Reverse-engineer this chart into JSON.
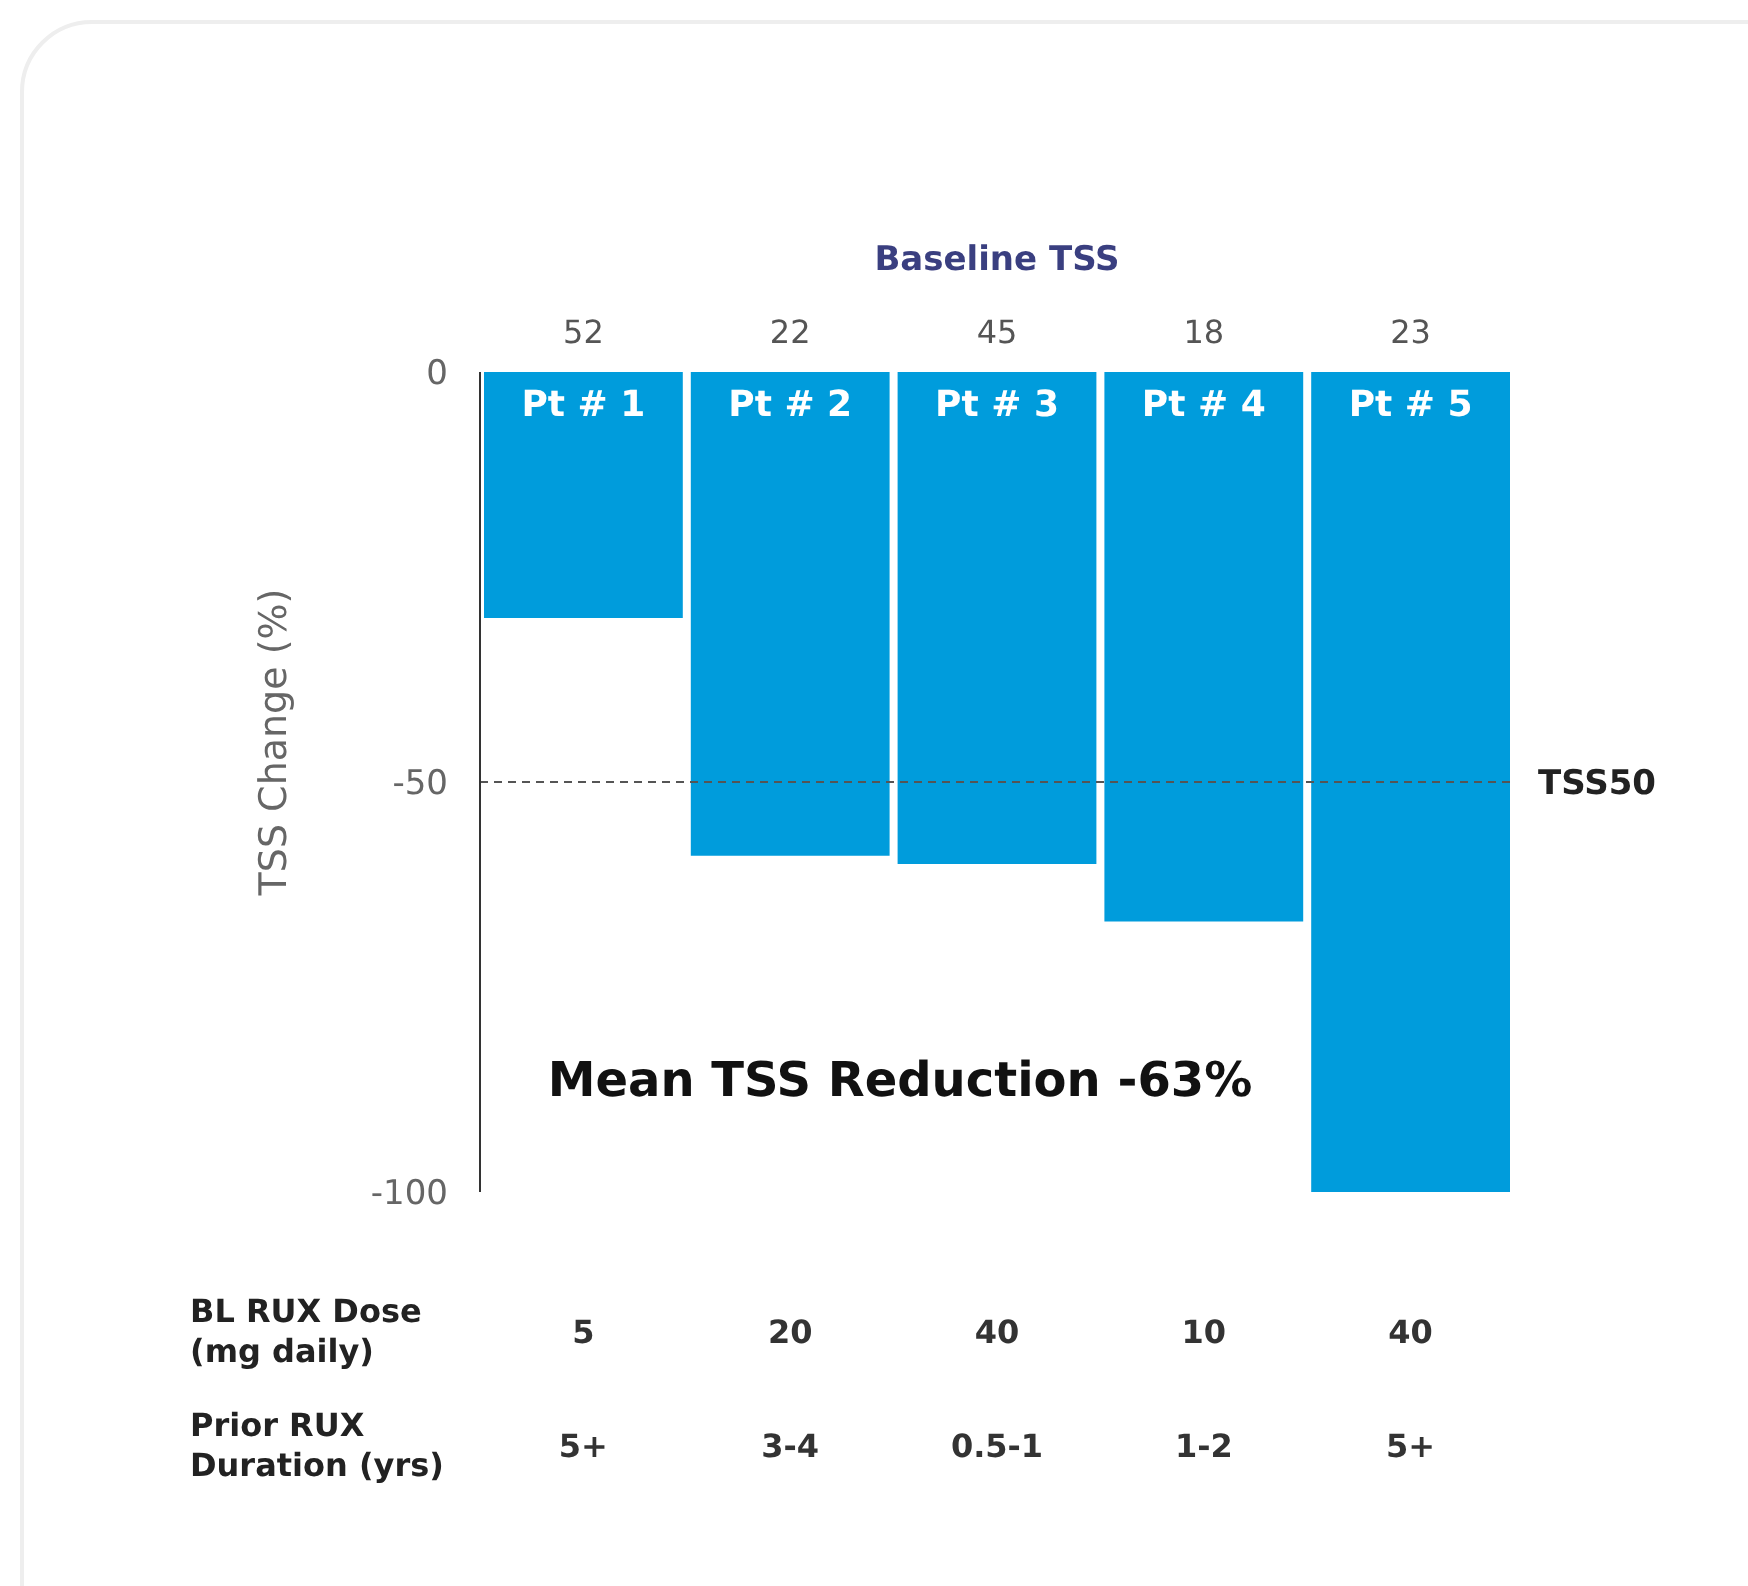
{
  "chart_data": {
    "type": "bar",
    "ylabel": "TSS Change (%)",
    "categories": [
      "Pt # 1",
      "Pt # 2",
      "Pt # 3",
      "Pt # 4",
      "Pt # 5"
    ],
    "values": [
      -30,
      -59,
      -60,
      -67,
      -100
    ],
    "color": "#009cdc",
    "ylim": [
      -100,
      0
    ],
    "yticks": [
      0,
      -50,
      -100
    ],
    "grid": false,
    "legend": false,
    "ref_lines": [
      {
        "axis": "y",
        "value": -50,
        "label": "TSS50",
        "color": "#555555",
        "line_style": "dashed"
      }
    ],
    "annotations": [
      "Baseline TSS",
      "52",
      "22",
      "45",
      "18",
      "23",
      "BL RUX Dose (mg daily)",
      "5",
      "20",
      "40",
      "10",
      "40",
      "Prior RUX Duration (yrs)",
      "5+",
      "3-4",
      "0.5-1",
      "1-2",
      "5+",
      "Mean TSS Reduction -63%"
    ]
  }
}
